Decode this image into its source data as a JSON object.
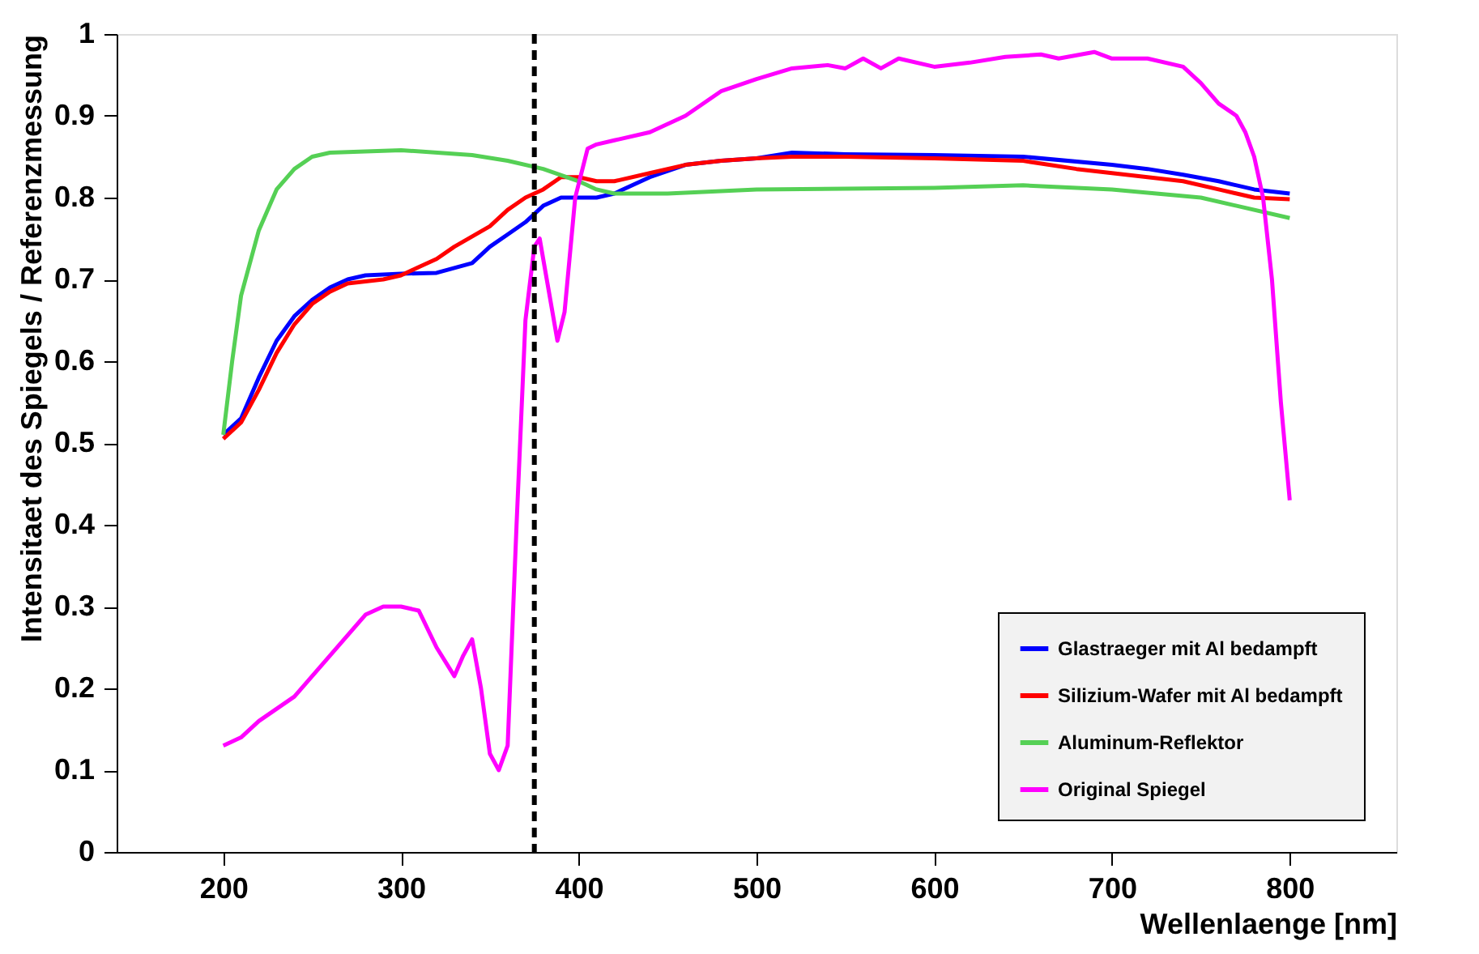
{
  "chart_data": {
    "type": "line",
    "xlabel": "Wellenlaenge [nm]",
    "ylabel": "Intensitaet des Spiegels / Referenzmessung",
    "xlim": [
      140,
      860
    ],
    "xticks": [
      200,
      300,
      400,
      500,
      600,
      700,
      800
    ],
    "ylim": [
      0,
      1
    ],
    "yticks": [
      0,
      0.1,
      0.2,
      0.3,
      0.4,
      0.5,
      0.6,
      0.7,
      0.8,
      0.9,
      1
    ],
    "grid": false,
    "legend": "bottom right",
    "line_style": "solid",
    "ref_lines": [
      {
        "axis": "x",
        "value": 375,
        "color": "#000000",
        "line_style": "dashed"
      }
    ],
    "series": [
      {
        "name": "Glastraeger mit Al bedampft",
        "color": "#0000ff",
        "x": [
          200,
          210,
          220,
          230,
          240,
          250,
          260,
          270,
          280,
          300,
          320,
          340,
          350,
          360,
          370,
          380,
          390,
          410,
          420,
          440,
          460,
          480,
          500,
          520,
          550,
          600,
          650,
          700,
          720,
          740,
          760,
          780,
          800
        ],
        "values": [
          0.51,
          0.53,
          0.58,
          0.625,
          0.655,
          0.675,
          0.69,
          0.7,
          0.705,
          0.707,
          0.708,
          0.72,
          0.74,
          0.755,
          0.77,
          0.79,
          0.8,
          0.8,
          0.805,
          0.825,
          0.84,
          0.845,
          0.848,
          0.855,
          0.853,
          0.852,
          0.85,
          0.84,
          0.835,
          0.828,
          0.82,
          0.81,
          0.805
        ]
      },
      {
        "name": "Silizium-Wafer mit Al bedampft",
        "color": "#ff0000",
        "x": [
          200,
          210,
          220,
          230,
          240,
          250,
          260,
          270,
          290,
          300,
          310,
          320,
          330,
          350,
          360,
          370,
          380,
          390,
          400,
          410,
          420,
          440,
          460,
          480,
          500,
          520,
          550,
          600,
          650,
          680,
          700,
          740,
          760,
          780,
          800
        ],
        "values": [
          0.505,
          0.525,
          0.565,
          0.61,
          0.645,
          0.67,
          0.685,
          0.695,
          0.7,
          0.705,
          0.715,
          0.725,
          0.74,
          0.765,
          0.785,
          0.8,
          0.81,
          0.825,
          0.825,
          0.82,
          0.82,
          0.83,
          0.84,
          0.845,
          0.848,
          0.85,
          0.85,
          0.848,
          0.845,
          0.835,
          0.83,
          0.82,
          0.81,
          0.8,
          0.798
        ]
      },
      {
        "name": "Aluminum-Reflektor",
        "color": "#55d055",
        "x": [
          200,
          205,
          210,
          220,
          230,
          240,
          250,
          260,
          300,
          340,
          360,
          380,
          400,
          410,
          420,
          450,
          500,
          600,
          650,
          700,
          750,
          800
        ],
        "values": [
          0.51,
          0.6,
          0.68,
          0.76,
          0.81,
          0.835,
          0.85,
          0.855,
          0.858,
          0.852,
          0.845,
          0.835,
          0.82,
          0.81,
          0.805,
          0.805,
          0.81,
          0.812,
          0.815,
          0.81,
          0.8,
          0.775
        ]
      },
      {
        "name": "Original Spiegel",
        "color": "#ff00ff",
        "x": [
          200,
          210,
          220,
          240,
          260,
          280,
          290,
          300,
          310,
          320,
          330,
          335,
          340,
          345,
          350,
          355,
          360,
          365,
          370,
          375,
          378,
          382,
          388,
          392,
          398,
          405,
          410,
          420,
          440,
          460,
          480,
          500,
          520,
          540,
          550,
          560,
          570,
          580,
          600,
          620,
          640,
          660,
          670,
          690,
          700,
          720,
          740,
          750,
          760,
          770,
          775,
          780,
          785,
          790,
          795,
          800
        ],
        "values": [
          0.13,
          0.14,
          0.16,
          0.19,
          0.24,
          0.29,
          0.3,
          0.3,
          0.295,
          0.25,
          0.215,
          0.24,
          0.26,
          0.2,
          0.12,
          0.1,
          0.13,
          0.4,
          0.65,
          0.74,
          0.75,
          0.7,
          0.625,
          0.66,
          0.8,
          0.86,
          0.865,
          0.87,
          0.88,
          0.9,
          0.93,
          0.945,
          0.958,
          0.962,
          0.958,
          0.97,
          0.958,
          0.97,
          0.96,
          0.965,
          0.972,
          0.975,
          0.97,
          0.978,
          0.97,
          0.97,
          0.96,
          0.94,
          0.915,
          0.9,
          0.88,
          0.85,
          0.8,
          0.7,
          0.55,
          0.43
        ]
      }
    ]
  }
}
